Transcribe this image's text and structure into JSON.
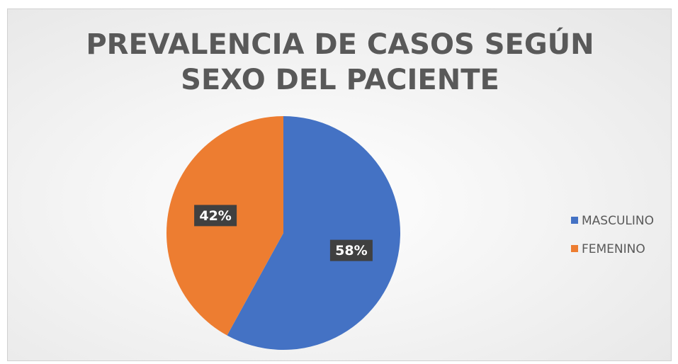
{
  "chart_data": {
    "type": "pie",
    "title": "PREVALENCIA DE CASOS SEGÚN SEXO DEL PACIENTE",
    "categories": [
      "MASCULINO",
      "FEMENINO"
    ],
    "values": [
      58,
      42
    ],
    "value_labels": [
      "58%",
      "42%"
    ],
    "colors": [
      "#4472c4",
      "#ed7d31"
    ],
    "legend": "right"
  }
}
